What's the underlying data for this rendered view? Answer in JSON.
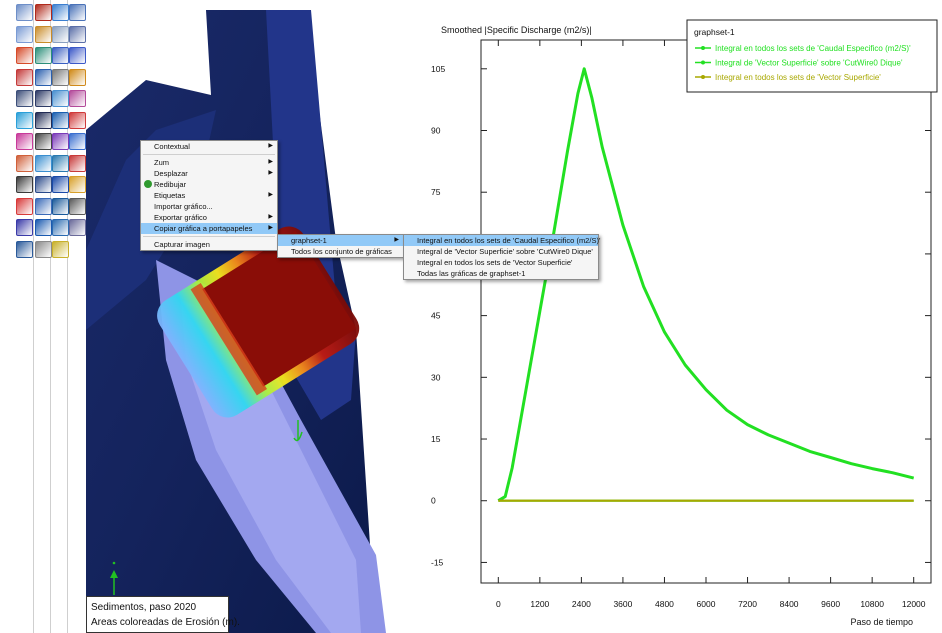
{
  "toolbar": {
    "tools": [
      {
        "name": "open-icon",
        "color": "#6e8fc8"
      },
      {
        "name": "record-icon",
        "color": "#b02a1c"
      },
      {
        "name": "layers-icon",
        "color": "#3b7fd0"
      },
      {
        "name": "graph-icon",
        "color": "#4a72b8"
      },
      {
        "name": "zoom-icon",
        "color": "#7a9bd4"
      },
      {
        "name": "pencil-icon",
        "color": "#c98c2a"
      },
      {
        "name": "list-icon",
        "color": "#8aa0c0"
      },
      {
        "name": "table-icon",
        "color": "#5b6fa8"
      },
      {
        "name": "palette-icon",
        "color": "#d64b2a"
      },
      {
        "name": "mesh-icon",
        "color": "#2c8f7a"
      },
      {
        "name": "gis-icon",
        "color": "#3a5fc2"
      },
      {
        "name": "curve-icon",
        "color": "#3c59c8"
      },
      {
        "name": "pointer-icon",
        "color": "#c43a3a"
      },
      {
        "name": "rect-icon",
        "color": "#2a5fae"
      },
      {
        "name": "chat-icon",
        "color": "#7a7a7a"
      },
      {
        "name": "paint-icon",
        "color": "#d08a1a"
      },
      {
        "name": "frame-icon",
        "color": "#3d4f7a"
      },
      {
        "name": "text-icon",
        "color": "#2d3a66"
      },
      {
        "name": "ruler-icon",
        "color": "#4a90d0"
      },
      {
        "name": "split-icon",
        "color": "#b34a9a"
      },
      {
        "name": "surface-icon",
        "color": "#2a9fd8"
      },
      {
        "name": "r-icon",
        "color": "#222c55"
      },
      {
        "name": "grid-icon",
        "color": "#1a5fb0"
      },
      {
        "name": "cross-icon",
        "color": "#d03a3a"
      },
      {
        "name": "triangle-icon",
        "color": "#c83a9a"
      },
      {
        "name": "lines-icon",
        "color": "#444444"
      },
      {
        "name": "shade-icon",
        "color": "#7a3ab8"
      },
      {
        "name": "arrow-icon",
        "color": "#3a6fd0"
      },
      {
        "name": "plot-icon",
        "color": "#d0603a"
      },
      {
        "name": "node-icon",
        "color": "#3a8fd0"
      },
      {
        "name": "stack-icon",
        "color": "#2a7ab0"
      },
      {
        "name": "bars-icon",
        "color": "#c83a3a"
      },
      {
        "name": "axis-icon",
        "color": "#3a3a3a"
      },
      {
        "name": "xy-icon",
        "color": "#2a4a8a"
      },
      {
        "name": "ascii-icon",
        "color": "#1a4aa8"
      },
      {
        "name": "brush-icon",
        "color": "#d8a02a"
      },
      {
        "name": "colorbar-icon",
        "color": "#d83a3a"
      },
      {
        "name": "vector-icon",
        "color": "#3a6ab8"
      },
      {
        "name": "shp-icon",
        "color": "#1a5a9a"
      },
      {
        "name": "probe-icon",
        "color": "#5a5a5a"
      },
      {
        "name": "legend-icon",
        "color": "#3a3aa8"
      },
      {
        "name": "info-icon",
        "color": "#1a5ab0"
      },
      {
        "name": "curve2-icon",
        "color": "#2a6ab0"
      },
      {
        "name": "chart-line-icon",
        "color": "#6a6a9a"
      },
      {
        "name": "bar-chart-icon",
        "color": "#2a5a9a"
      },
      {
        "name": "hand-icon",
        "color": "#8a8a8a"
      },
      {
        "name": "moon-icon",
        "color": "#c8b02a"
      }
    ]
  },
  "viewport": {
    "status_line1": "Sedimentos, paso 2020",
    "status_line2": "Areas coloreadas de Erosión (m)."
  },
  "context_menu": {
    "items": [
      {
        "label": "Contextual",
        "submenu": true,
        "group": 1
      },
      {
        "label": "Zum",
        "submenu": true,
        "group": 2
      },
      {
        "label": "Desplazar",
        "submenu": true,
        "group": 2
      },
      {
        "label": "Redibujar",
        "submenu": false,
        "group": 2,
        "icon": "redraw-icon"
      },
      {
        "label": "Etiquetas",
        "submenu": true,
        "group": 2
      },
      {
        "label": "Importar gráfico...",
        "submenu": false,
        "group": 2
      },
      {
        "label": "Exportar gráfico",
        "submenu": true,
        "group": 2
      },
      {
        "label": "Copiar gráfica a portapapeles",
        "submenu": true,
        "group": 2,
        "highlighted": true
      },
      {
        "label": "Capturar imagen",
        "submenu": false,
        "group": 3
      }
    ]
  },
  "submenu1": {
    "items": [
      {
        "label": "graphset-1",
        "submenu": true,
        "highlighted": true
      },
      {
        "label": "Todos los conjunto de gráficas",
        "submenu": false
      }
    ]
  },
  "submenu2": {
    "items": [
      {
        "label": "Integral en todos los sets de 'Caudal Especifico (m2/S)'",
        "highlighted": true
      },
      {
        "label": "Integral de 'Vector Superficie' sobre 'CutWire0 Dique'"
      },
      {
        "label": "Integral en todos los sets de 'Vector Superficie'"
      },
      {
        "label": "Todas las gráficas de graphset-1"
      }
    ]
  },
  "chart_data": {
    "type": "line",
    "title": "Smoothed |Specific Discharge (m2/s)|",
    "xlabel": "Paso de tiempo",
    "ylabel": "",
    "xlim": [
      -500,
      12500
    ],
    "ylim": [
      -20,
      112
    ],
    "xticks": [
      0,
      1200,
      2400,
      3600,
      4800,
      6000,
      7200,
      8400,
      9600,
      10800,
      12000
    ],
    "yticks": [
      -15,
      0,
      15,
      30,
      45,
      60,
      75,
      90,
      105
    ],
    "legend_title": "graphset-1",
    "legend_position": "top-right",
    "series": [
      {
        "name": "Integral en todos los sets de 'Caudal Especifico (m2/S)'",
        "color": "#22e022",
        "x": [
          0,
          200,
          400,
          800,
          1200,
          1600,
          2000,
          2300,
          2480,
          2700,
          3000,
          3600,
          4200,
          4800,
          5400,
          6000,
          6600,
          7200,
          7800,
          8400,
          9000,
          9600,
          10200,
          10800,
          11400,
          12000
        ],
        "y": [
          0,
          1,
          8,
          27,
          46,
          65,
          85,
          99,
          105,
          98,
          86,
          67,
          52,
          41,
          33,
          27,
          22,
          18.5,
          16,
          14,
          12,
          10.5,
          9,
          7.8,
          6.8,
          5.5
        ]
      },
      {
        "name": "Integral de 'Vector Superficie' sobre 'CutWire0 Dique'",
        "color": "#22e022",
        "x": [
          0,
          12000
        ],
        "y": [
          0,
          0
        ]
      },
      {
        "name": "Integral en todos los sets de 'Vector Superficie'",
        "color": "#a8a800",
        "x": [
          0,
          12000
        ],
        "y": [
          0,
          0
        ]
      }
    ]
  }
}
